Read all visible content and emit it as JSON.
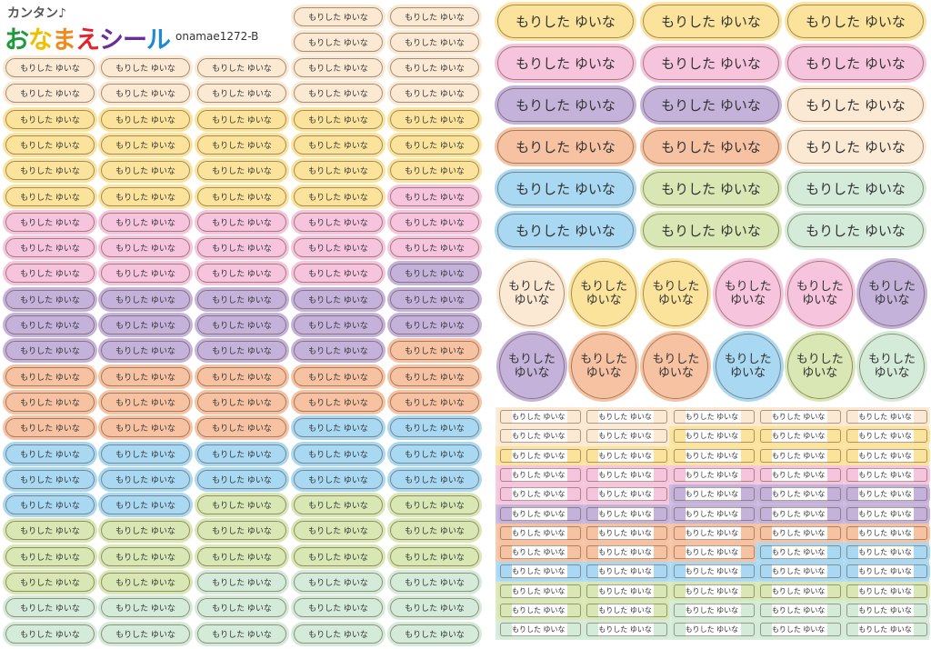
{
  "header": {
    "subtitle": "カンタン♪",
    "brand_chars": [
      "お",
      "な",
      "ま",
      "え",
      "シ",
      "ー",
      "ル"
    ],
    "brand_colors": [
      "#1c9a3c",
      "#f0c000",
      "#f08a1c",
      "#e4222c",
      "#6b2c9c",
      "#6b2c9c",
      "#1e8ad6"
    ],
    "product_code": "onamae1272-B"
  },
  "label": {
    "name": "もりした ゆいな",
    "family": "もりした",
    "given": "ゆいな"
  },
  "colors": {
    "cream": "#fbe9d3",
    "yellow": "#fbe39c",
    "pink": "#f6c4dc",
    "purple": "#c5b2db",
    "orange": "#f7c2a2",
    "blue": "#a9d8f3",
    "green": "#d9e7b4",
    "mint": "#d4ebd9"
  },
  "small_ovals_top": [
    "cream",
    "cream",
    "cream",
    "cream"
  ],
  "small_ovals": [
    [
      "cream",
      "cream",
      "cream",
      "cream",
      "cream"
    ],
    [
      "cream",
      "cream",
      "cream",
      "cream",
      "cream"
    ],
    [
      "yellow",
      "yellow",
      "yellow",
      "yellow",
      "yellow"
    ],
    [
      "yellow",
      "yellow",
      "yellow",
      "yellow",
      "yellow"
    ],
    [
      "yellow",
      "yellow",
      "yellow",
      "yellow",
      "yellow"
    ],
    [
      "yellow",
      "yellow",
      "yellow",
      "yellow",
      "pink"
    ],
    [
      "pink",
      "pink",
      "pink",
      "pink",
      "pink"
    ],
    [
      "pink",
      "pink",
      "pink",
      "pink",
      "pink"
    ],
    [
      "pink",
      "pink",
      "pink",
      "pink",
      "purple"
    ],
    [
      "purple",
      "purple",
      "purple",
      "purple",
      "purple"
    ],
    [
      "purple",
      "purple",
      "purple",
      "purple",
      "purple"
    ],
    [
      "purple",
      "purple",
      "purple",
      "purple",
      "orange"
    ],
    [
      "orange",
      "orange",
      "orange",
      "orange",
      "orange"
    ],
    [
      "orange",
      "orange",
      "orange",
      "orange",
      "orange"
    ],
    [
      "orange",
      "orange",
      "orange",
      "blue",
      "blue"
    ],
    [
      "blue",
      "blue",
      "blue",
      "blue",
      "blue"
    ],
    [
      "blue",
      "blue",
      "blue",
      "blue",
      "blue"
    ],
    [
      "blue",
      "blue",
      "green",
      "green",
      "green"
    ],
    [
      "green",
      "green",
      "green",
      "green",
      "green"
    ],
    [
      "green",
      "green",
      "green",
      "green",
      "green"
    ],
    [
      "green",
      "green",
      "mint",
      "mint",
      "mint"
    ],
    [
      "mint",
      "mint",
      "mint",
      "mint",
      "mint"
    ],
    [
      "mint",
      "mint",
      "mint",
      "mint",
      "mint"
    ]
  ],
  "large_ovals": [
    [
      "yellow",
      "yellow",
      "yellow"
    ],
    [
      "pink",
      "pink",
      "pink"
    ],
    [
      "purple",
      "purple",
      "cream"
    ],
    [
      "orange",
      "orange",
      "cream"
    ],
    [
      "blue",
      "green",
      "mint"
    ],
    [
      "blue",
      "green",
      "mint"
    ]
  ],
  "circles": [
    [
      "cream",
      "yellow",
      "yellow",
      "pink",
      "pink",
      "purple"
    ],
    [
      "purple",
      "orange",
      "orange",
      "blue",
      "green",
      "mint"
    ]
  ],
  "strips": [
    [
      "cream",
      "cream",
      "cream",
      "cream",
      "cream"
    ],
    [
      "cream",
      "cream",
      "yellow",
      "yellow",
      "yellow"
    ],
    [
      "yellow",
      "yellow",
      "yellow",
      "yellow",
      "yellow"
    ],
    [
      "pink",
      "pink",
      "pink",
      "pink",
      "pink"
    ],
    [
      "pink",
      "pink",
      "purple",
      "purple",
      "purple"
    ],
    [
      "purple",
      "purple",
      "purple",
      "purple",
      "purple"
    ],
    [
      "orange",
      "orange",
      "orange",
      "orange",
      "orange"
    ],
    [
      "orange",
      "orange",
      "orange",
      "blue",
      "blue"
    ],
    [
      "blue",
      "blue",
      "blue",
      "blue",
      "blue"
    ],
    [
      "green",
      "green",
      "green",
      "green",
      "green"
    ],
    [
      "green",
      "green",
      "mint",
      "mint",
      "mint"
    ],
    [
      "mint",
      "mint",
      "mint",
      "mint",
      "mint"
    ]
  ]
}
